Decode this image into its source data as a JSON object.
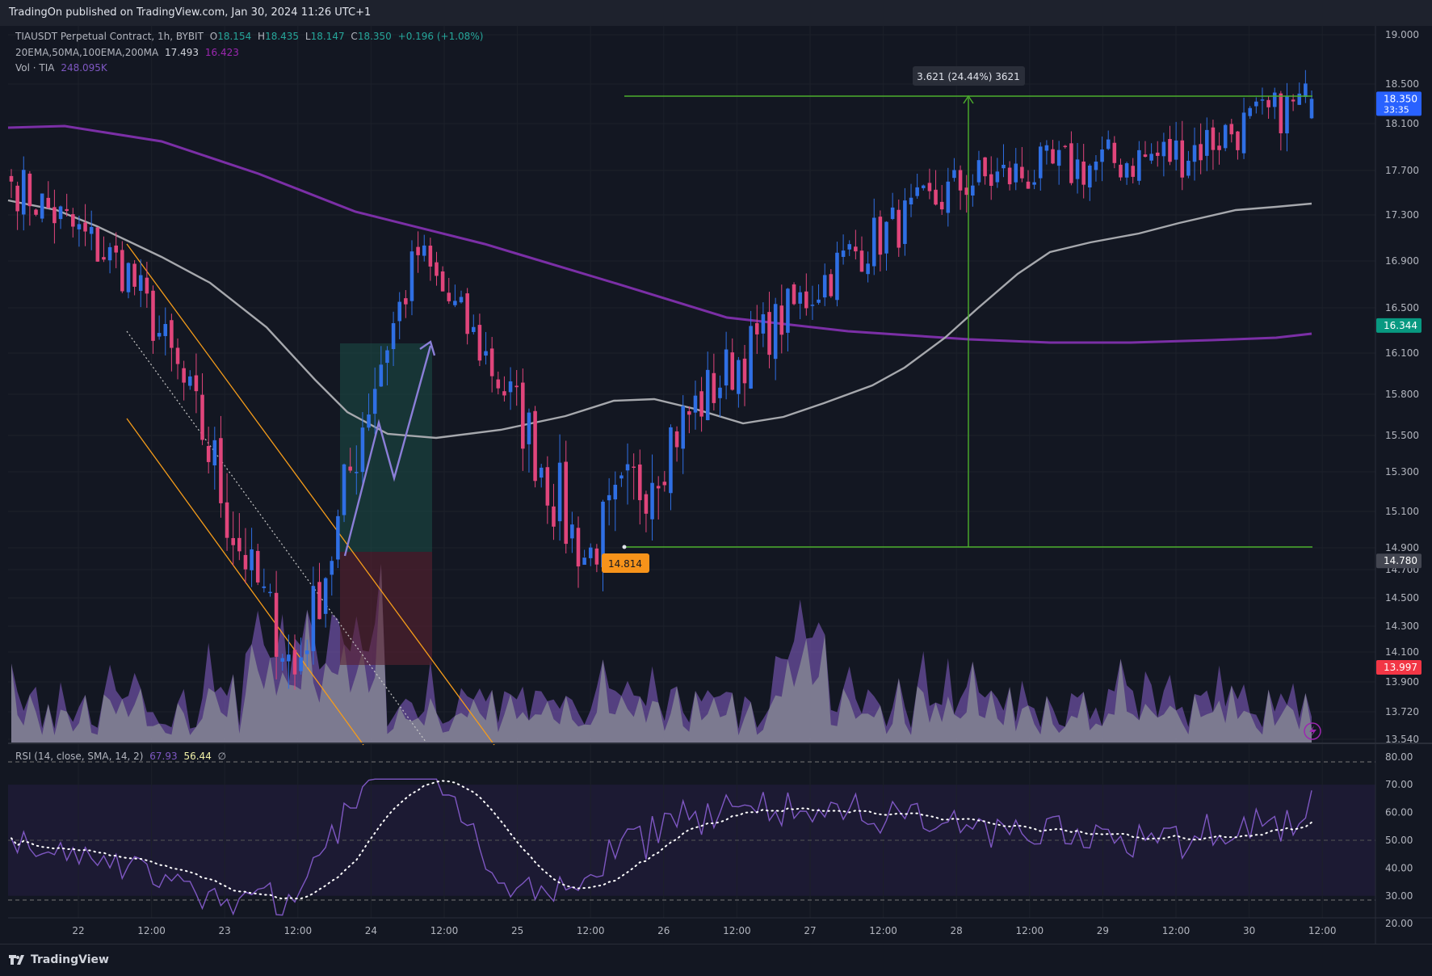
{
  "header": {
    "published": "TradingOn published on TradingView.com, Jan 30, 2024 11:26 UTC+1"
  },
  "legend": {
    "symbol": "TIAUSDT Perpetual Contract, 1h, BYBIT",
    "open_label": "O",
    "open": "18.154",
    "high_label": "H",
    "high": "18.435",
    "low_label": "L",
    "low": "18.147",
    "close_label": "C",
    "close": "18.350",
    "change": "+0.196 (+1.08%)",
    "ma_label": "20EMA,50MA,100EMA,200MA",
    "ma_value1": "17.493",
    "ma_value2": "16.423",
    "vol_label": "Vol · TIA",
    "vol_value": "248.095K"
  },
  "rsi_legend": {
    "label": "RSI (14, close, SMA, 14, 2)",
    "rsi": "67.93",
    "ma": "56.44",
    "extra": "∅"
  },
  "annotations": {
    "range_label": "3.621 (24.44%) 3621",
    "low_label": "14.814"
  },
  "price_badges": [
    {
      "value": "18.350",
      "sub": "33:35",
      "price": 18.35,
      "color": "#2962ff"
    },
    {
      "value": "16.344",
      "sub": "",
      "price": 16.344,
      "color": "#089981"
    },
    {
      "value": "14.780",
      "sub": "",
      "price": 14.78,
      "color": "#434651"
    },
    {
      "value": "13.997",
      "sub": "",
      "price": 13.997,
      "color": "#f23645"
    }
  ],
  "footer": {
    "brand": "TradingView"
  },
  "colors": {
    "up": "#2f6fe4",
    "down": "#e0457b",
    "ema_slow": "#7b2fa6",
    "ma_grey": "#a6a8ad",
    "measure": "#4caf2c",
    "channel": "#f59c1a"
  },
  "chart_data": {
    "type": "candlestick",
    "symbol": "TIAUSDT",
    "timeframe": "1h",
    "price_axis_ticks": [
      "19.000",
      "18.500",
      "18.100",
      "17.700",
      "17.300",
      "16.900",
      "16.500",
      "16.100",
      "15.800",
      "15.500",
      "15.300",
      "15.100",
      "14.900",
      "14.700",
      "14.500",
      "14.300",
      "14.100",
      "13.900",
      "13.720",
      "13.540"
    ],
    "rsi_axis_ticks": [
      "80.00",
      "70.00",
      "60.00",
      "50.00",
      "40.00",
      "30.00",
      "20.00"
    ],
    "time_axis_ticks": [
      "22",
      "12:00",
      "23",
      "12:00",
      "24",
      "12:00",
      "25",
      "12:00",
      "26",
      "12:00",
      "27",
      "12:00",
      "28",
      "12:00",
      "29",
      "12:00",
      "30",
      "12:00"
    ],
    "key_points": [
      {
        "time": "21 ~12:00",
        "price": 17.6
      },
      {
        "time": "22 12:00",
        "price": 16.8
      },
      {
        "time": "23 ~14:00",
        "price": 13.95
      },
      {
        "time": "24 12:00",
        "price": 16.95
      },
      {
        "time": "25 ~15:00",
        "price": 14.81
      },
      {
        "time": "27 ~12:00",
        "price": 16.95
      },
      {
        "time": "28 ~09:00",
        "price": 17.6
      },
      {
        "time": "29 ~12:00",
        "price": 17.85
      },
      {
        "time": "30 ~11:00",
        "price": 18.35
      }
    ],
    "measure": {
      "from_price": 14.814,
      "to_price": 18.435,
      "change": 3.621,
      "change_pct": 24.44
    },
    "rsi": {
      "value": 67.93,
      "ma": 56.44,
      "overbought": 70,
      "mid": 50,
      "oversold": 30
    }
  }
}
